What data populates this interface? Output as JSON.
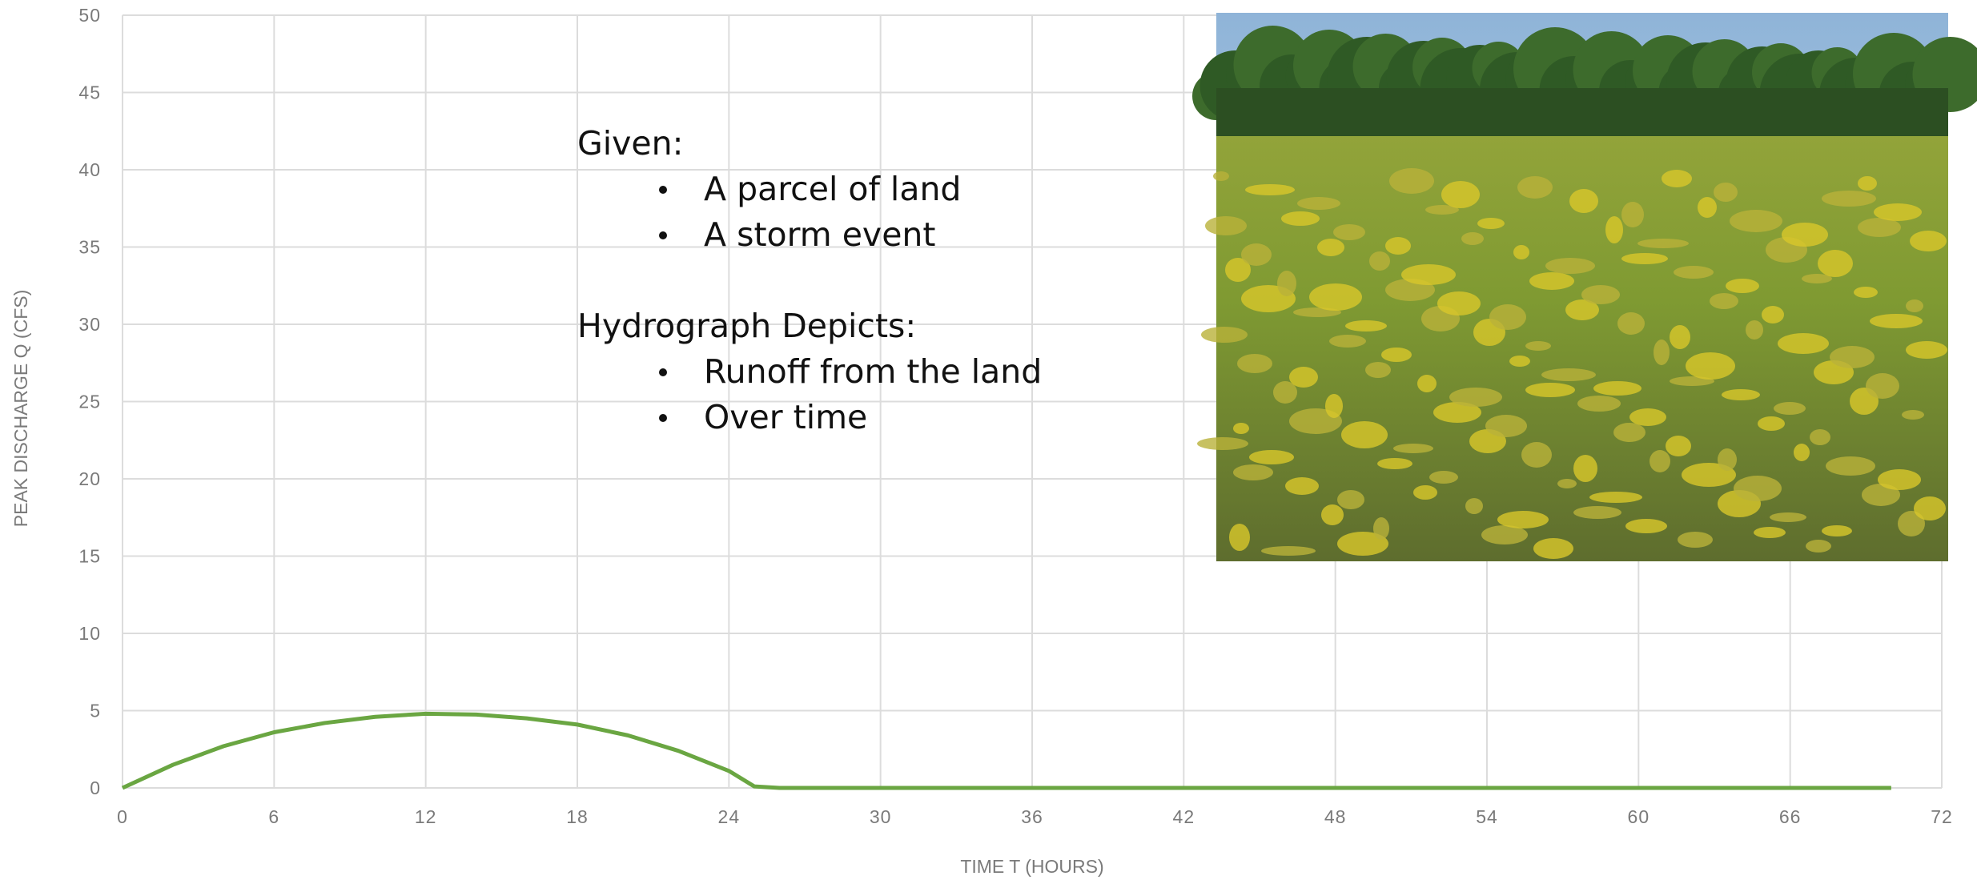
{
  "chart_data": {
    "type": "line",
    "x_label": "TIME T (HOURS)",
    "y_label": "PEAK DISCHARGE Q (CFS)",
    "x": [
      0,
      2,
      4,
      6,
      8,
      10,
      12,
      14,
      16,
      18,
      20,
      22,
      24,
      25,
      26,
      70
    ],
    "series": [
      {
        "color": "#6aa642",
        "values": [
          0,
          1.5,
          2.7,
          3.6,
          4.2,
          4.6,
          4.8,
          4.75,
          4.5,
          4.1,
          3.4,
          2.4,
          1.1,
          0.1,
          0,
          0
        ]
      }
    ],
    "xlim": [
      0,
      72
    ],
    "xticks": [
      0,
      6,
      12,
      18,
      24,
      30,
      36,
      42,
      48,
      54,
      60,
      66,
      72
    ],
    "ylim": [
      0,
      50
    ],
    "yticks": [
      0,
      5,
      10,
      15,
      20,
      25,
      30,
      35,
      40,
      45,
      50
    ],
    "grid": true,
    "annotations": {
      "given_heading": "Given:",
      "given_items": [
        "A parcel of land",
        "A storm event"
      ],
      "depicts_heading": "Hydrograph Depicts:",
      "depicts_items": [
        "Runoff from the land",
        "Over time"
      ]
    }
  }
}
